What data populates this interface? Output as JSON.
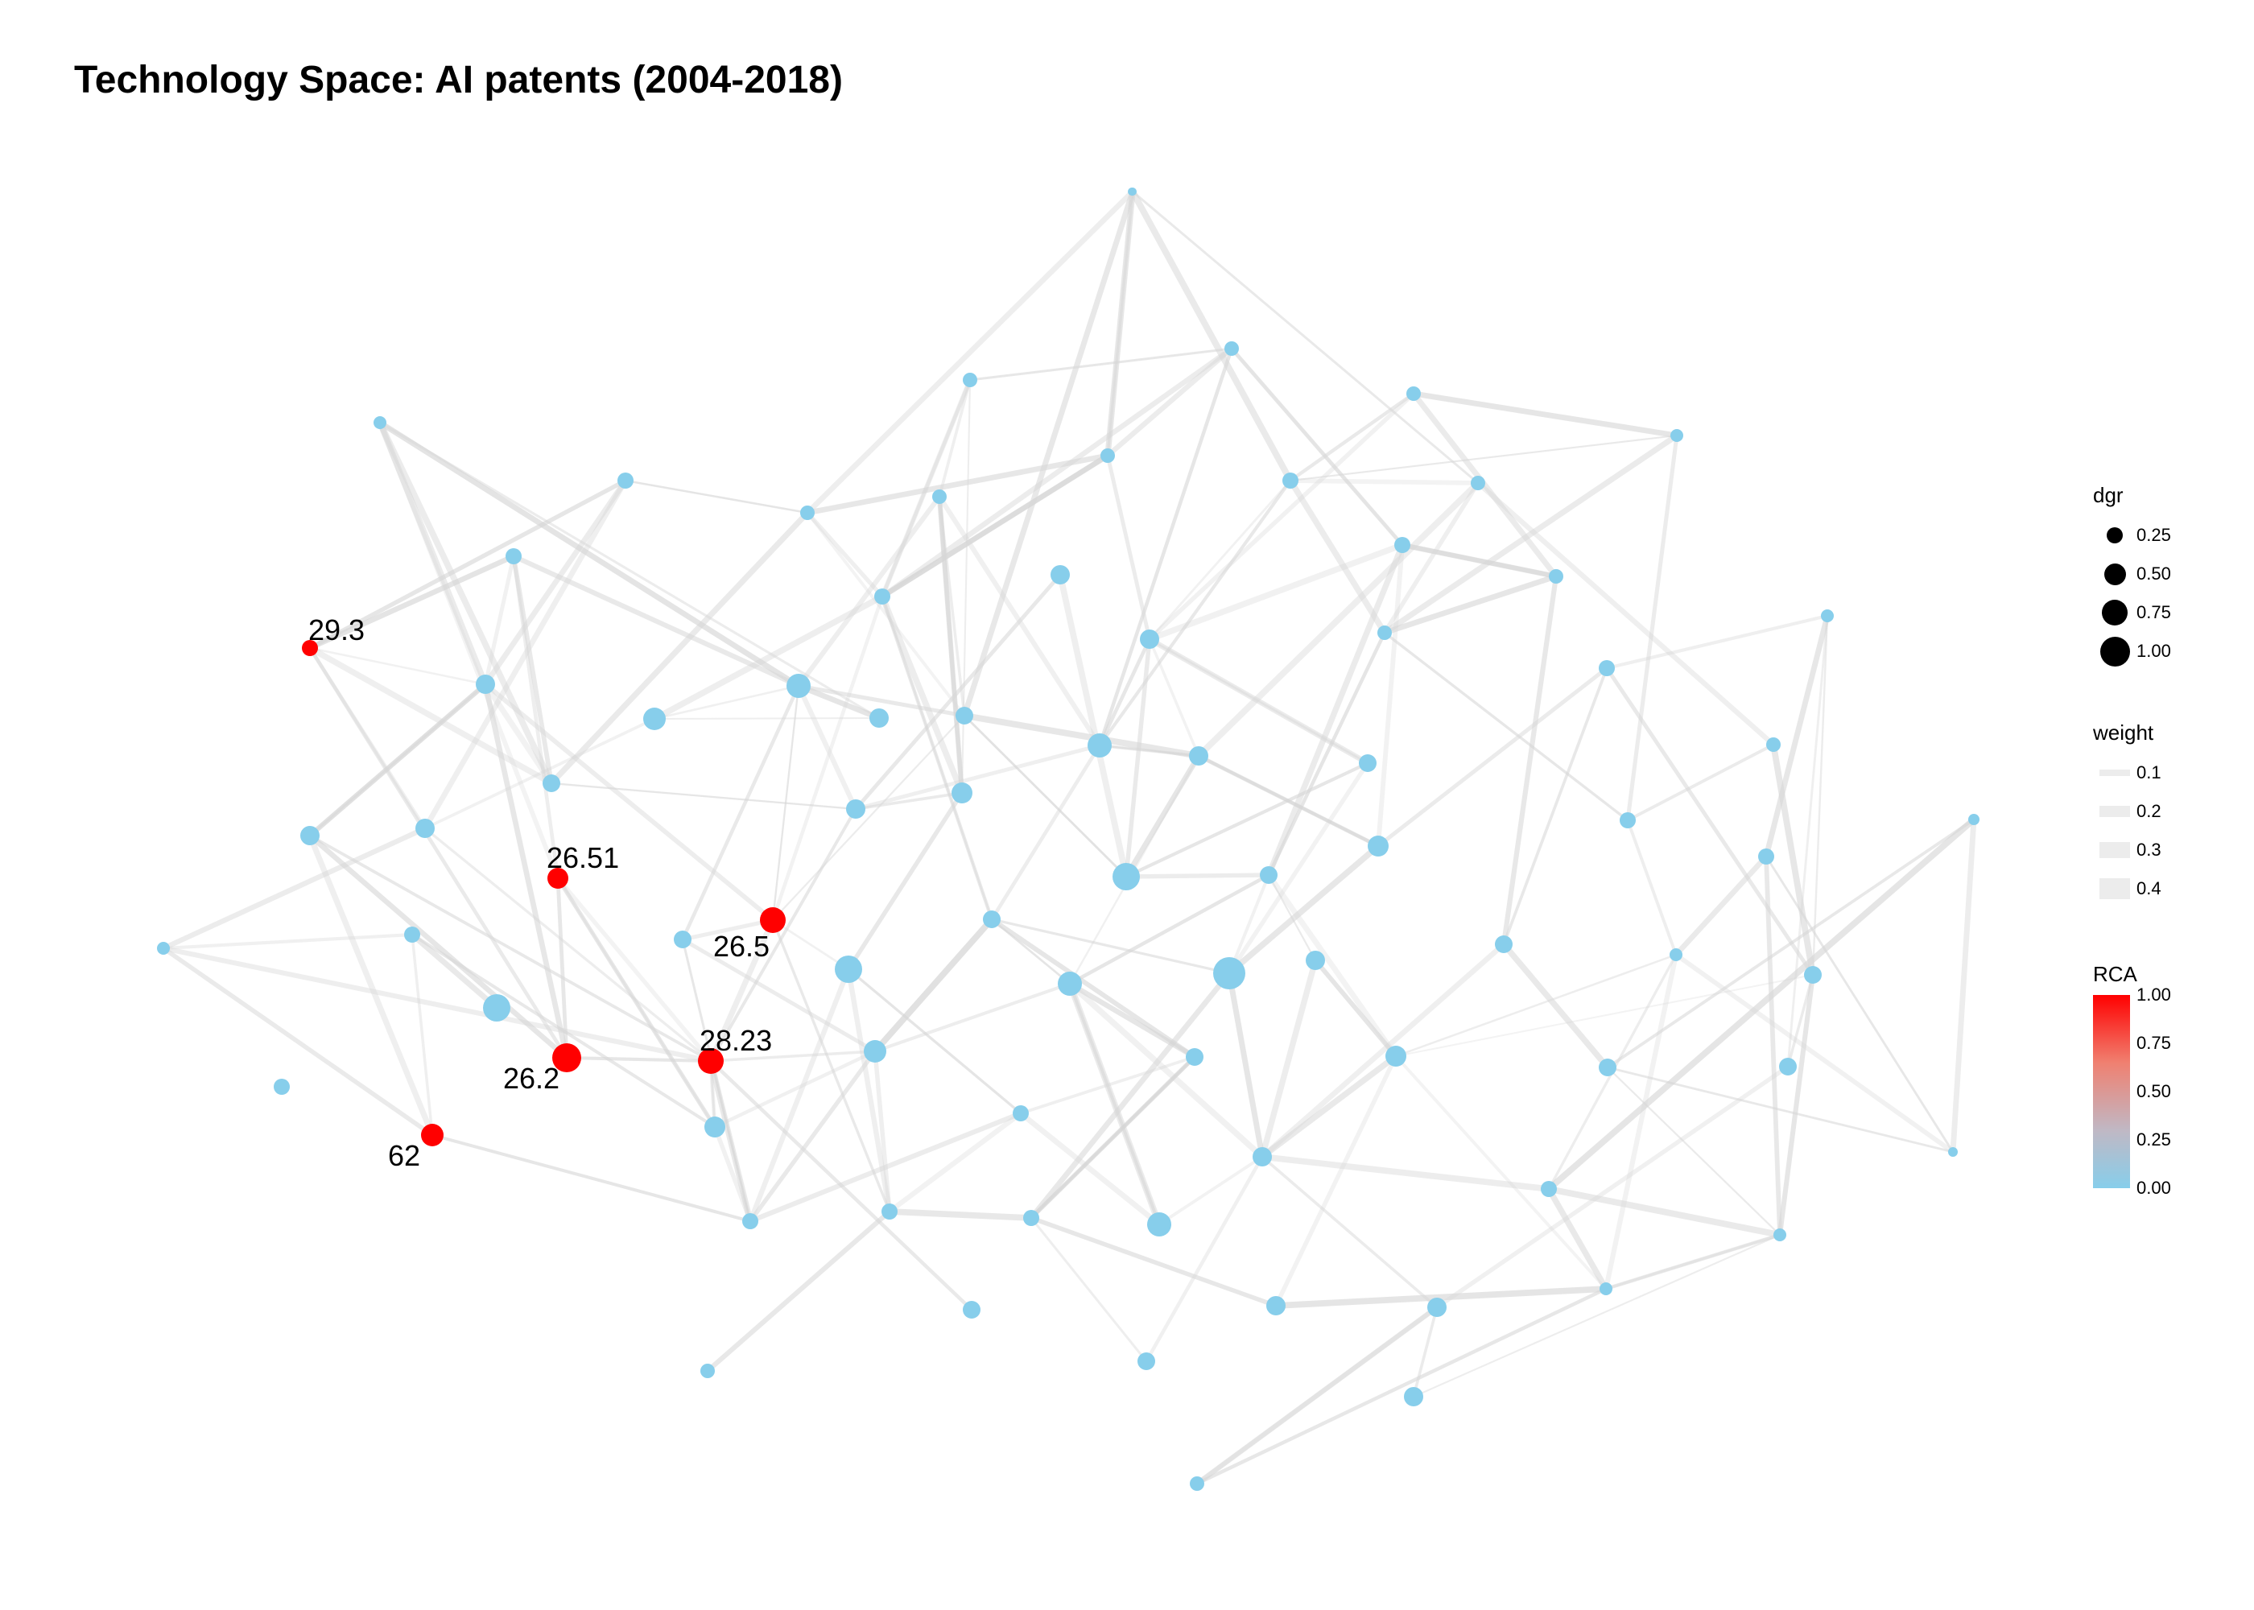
{
  "title": "Technology Space: AI patents (2004-2018)",
  "colors": {
    "node_low": "#87ceeb",
    "node_high": "#ff0000",
    "edge": "#d6d6d6"
  },
  "legend": {
    "dgr": {
      "title": "dgr",
      "items": [
        {
          "label": "0.25",
          "value": 0.25
        },
        {
          "label": "0.50",
          "value": 0.5
        },
        {
          "label": "0.75",
          "value": 0.75
        },
        {
          "label": "1.00",
          "value": 1.0
        }
      ]
    },
    "weight": {
      "title": "weight",
      "items": [
        {
          "label": "0.1",
          "value": 0.1
        },
        {
          "label": "0.2",
          "value": 0.2
        },
        {
          "label": "0.3",
          "value": 0.3
        },
        {
          "label": "0.4",
          "value": 0.4
        }
      ]
    },
    "rca": {
      "title": "RCA",
      "ticks": [
        "1.00",
        "0.75",
        "0.50",
        "0.25",
        "0.00"
      ]
    }
  },
  "highlighted_labels": [
    "29.3",
    "26.51",
    "26.5",
    "28.23",
    "26.2",
    "62"
  ]
}
